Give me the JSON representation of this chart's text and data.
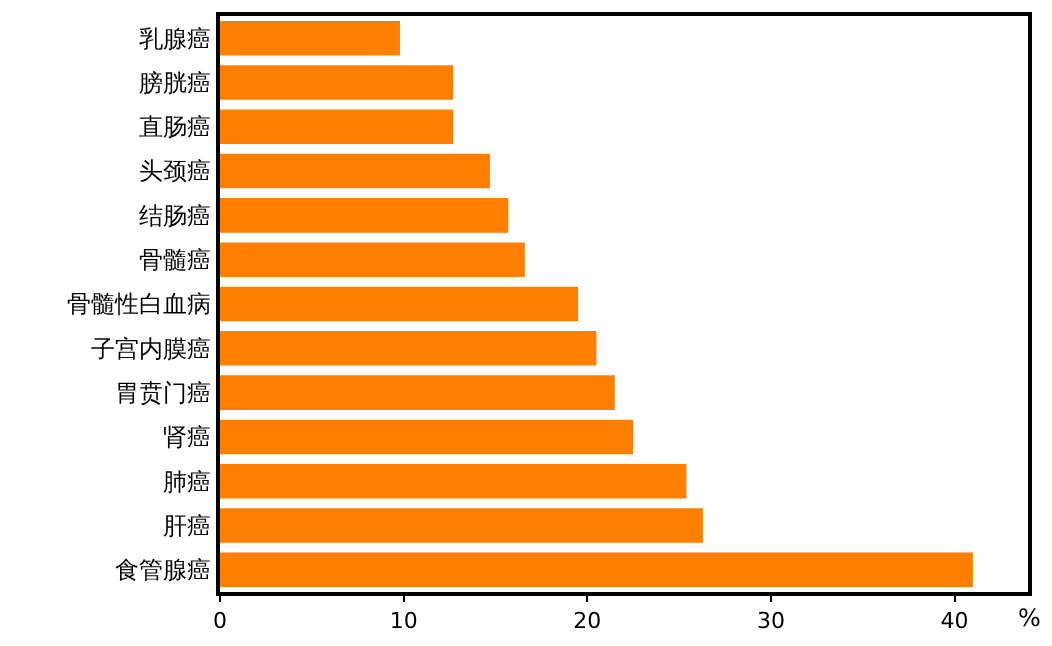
{
  "chart_data": {
    "type": "bar",
    "orientation": "horizontal",
    "xlabel": "%",
    "categories": [
      "乳腺癌",
      "膀胱癌",
      "直肠癌",
      "头颈癌",
      "结肠癌",
      "骨髓癌",
      "骨髓性白血病",
      "子宫内膜癌",
      "胃贲门癌",
      "肾癌",
      "肺癌",
      "肝癌",
      "食管腺癌"
    ],
    "values": [
      9.8,
      12.7,
      12.7,
      14.7,
      15.7,
      16.6,
      19.5,
      20.5,
      21.5,
      22.5,
      25.4,
      26.3,
      41.0
    ],
    "color": "#ff8000",
    "xlim": [
      0,
      44
    ],
    "xticks": [
      0,
      10,
      20,
      30,
      40
    ]
  }
}
